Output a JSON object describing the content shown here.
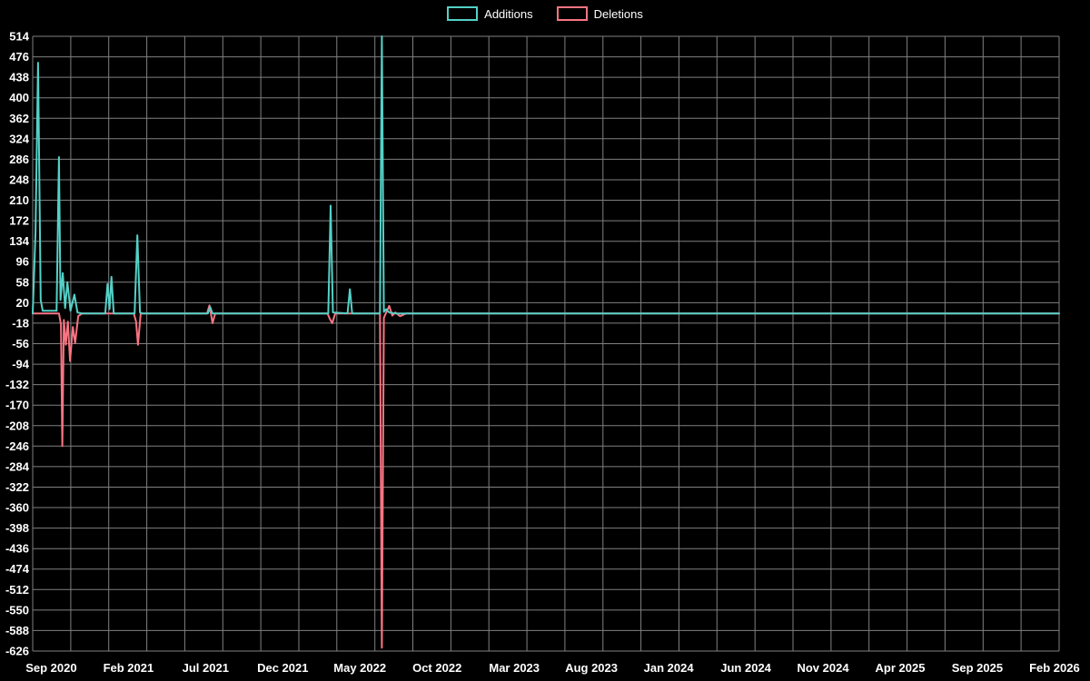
{
  "chart_data": {
    "type": "line",
    "title": "",
    "legend": {
      "position": "top",
      "entries": [
        "Additions",
        "Deletions"
      ]
    },
    "colors": {
      "background": "#000000",
      "grid": "#808080",
      "text": "#ffffff",
      "additions": "#54d1c7",
      "deletions": "#f97583"
    },
    "ylim": [
      -626,
      514
    ],
    "ytick_step": 38,
    "yticks": [
      514,
      476,
      438,
      400,
      362,
      324,
      286,
      248,
      210,
      172,
      134,
      96,
      58,
      20,
      -18,
      -56,
      -94,
      -132,
      -170,
      -208,
      -246,
      -284,
      -322,
      -360,
      -398,
      -436,
      -474,
      -512,
      -550,
      -588,
      -626
    ],
    "x_unit": "months since Sep 2020",
    "x_domain": [
      -1.2,
      65.3
    ],
    "xticks": [
      {
        "label": "Sep 2020",
        "month": 0
      },
      {
        "label": "Feb 2021",
        "month": 5
      },
      {
        "label": "Jul 2021",
        "month": 10
      },
      {
        "label": "Dec 2021",
        "month": 15
      },
      {
        "label": "May 2022",
        "month": 20
      },
      {
        "label": "Oct 2022",
        "month": 25
      },
      {
        "label": "Mar 2023",
        "month": 30
      },
      {
        "label": "Aug 2023",
        "month": 35
      },
      {
        "label": "Jan 2024",
        "month": 40
      },
      {
        "label": "Jun 2024",
        "month": 45
      },
      {
        "label": "Nov 2024",
        "month": 50
      },
      {
        "label": "Apr 2025",
        "month": 55
      },
      {
        "label": "Sep 2025",
        "month": 60
      },
      {
        "label": "Feb 2026",
        "month": 65
      }
    ],
    "series": [
      {
        "name": "Additions",
        "color": "#54d1c7",
        "points": [
          [
            -1.2,
            0
          ],
          [
            -1.02,
            150
          ],
          [
            -0.85,
            465
          ],
          [
            -0.68,
            25
          ],
          [
            -0.55,
            5
          ],
          [
            0.35,
            5
          ],
          [
            0.5,
            290
          ],
          [
            0.6,
            25
          ],
          [
            0.75,
            75
          ],
          [
            0.9,
            10
          ],
          [
            1.05,
            58
          ],
          [
            1.25,
            5
          ],
          [
            1.5,
            35
          ],
          [
            1.7,
            2
          ],
          [
            2.0,
            0
          ],
          [
            3.5,
            0
          ],
          [
            3.65,
            55
          ],
          [
            3.78,
            8
          ],
          [
            3.9,
            68
          ],
          [
            4.05,
            0
          ],
          [
            5.4,
            0
          ],
          [
            5.58,
            145
          ],
          [
            5.75,
            2
          ],
          [
            5.9,
            0
          ],
          [
            10.15,
            0
          ],
          [
            10.3,
            12
          ],
          [
            10.45,
            0
          ],
          [
            17.95,
            0
          ],
          [
            18.1,
            200
          ],
          [
            18.25,
            2
          ],
          [
            19.2,
            0
          ],
          [
            19.35,
            45
          ],
          [
            19.5,
            0
          ],
          [
            21.3,
            0
          ],
          [
            21.42,
            514
          ],
          [
            21.55,
            3
          ],
          [
            21.7,
            8
          ],
          [
            21.9,
            2
          ],
          [
            22.3,
            0
          ],
          [
            65.3,
            0
          ]
        ]
      },
      {
        "name": "Deletions",
        "color": "#f97583",
        "points": [
          [
            -1.2,
            0
          ],
          [
            0.5,
            0
          ],
          [
            0.63,
            -20
          ],
          [
            0.72,
            -246
          ],
          [
            0.82,
            -12
          ],
          [
            0.95,
            -58
          ],
          [
            1.08,
            -15
          ],
          [
            1.22,
            -88
          ],
          [
            1.4,
            -25
          ],
          [
            1.55,
            -55
          ],
          [
            1.75,
            -5
          ],
          [
            2.0,
            0
          ],
          [
            5.35,
            0
          ],
          [
            5.5,
            -15
          ],
          [
            5.62,
            -58
          ],
          [
            5.8,
            0
          ],
          [
            10.1,
            0
          ],
          [
            10.25,
            15
          ],
          [
            10.45,
            -18
          ],
          [
            10.62,
            0
          ],
          [
            17.9,
            0
          ],
          [
            18.05,
            -10
          ],
          [
            18.2,
            -18
          ],
          [
            18.4,
            0
          ],
          [
            21.3,
            0
          ],
          [
            21.42,
            -620
          ],
          [
            21.55,
            -8
          ],
          [
            21.9,
            14
          ],
          [
            22.1,
            -4
          ],
          [
            22.3,
            2
          ],
          [
            22.6,
            -5
          ],
          [
            23.0,
            0
          ],
          [
            65.3,
            0
          ]
        ]
      }
    ]
  }
}
